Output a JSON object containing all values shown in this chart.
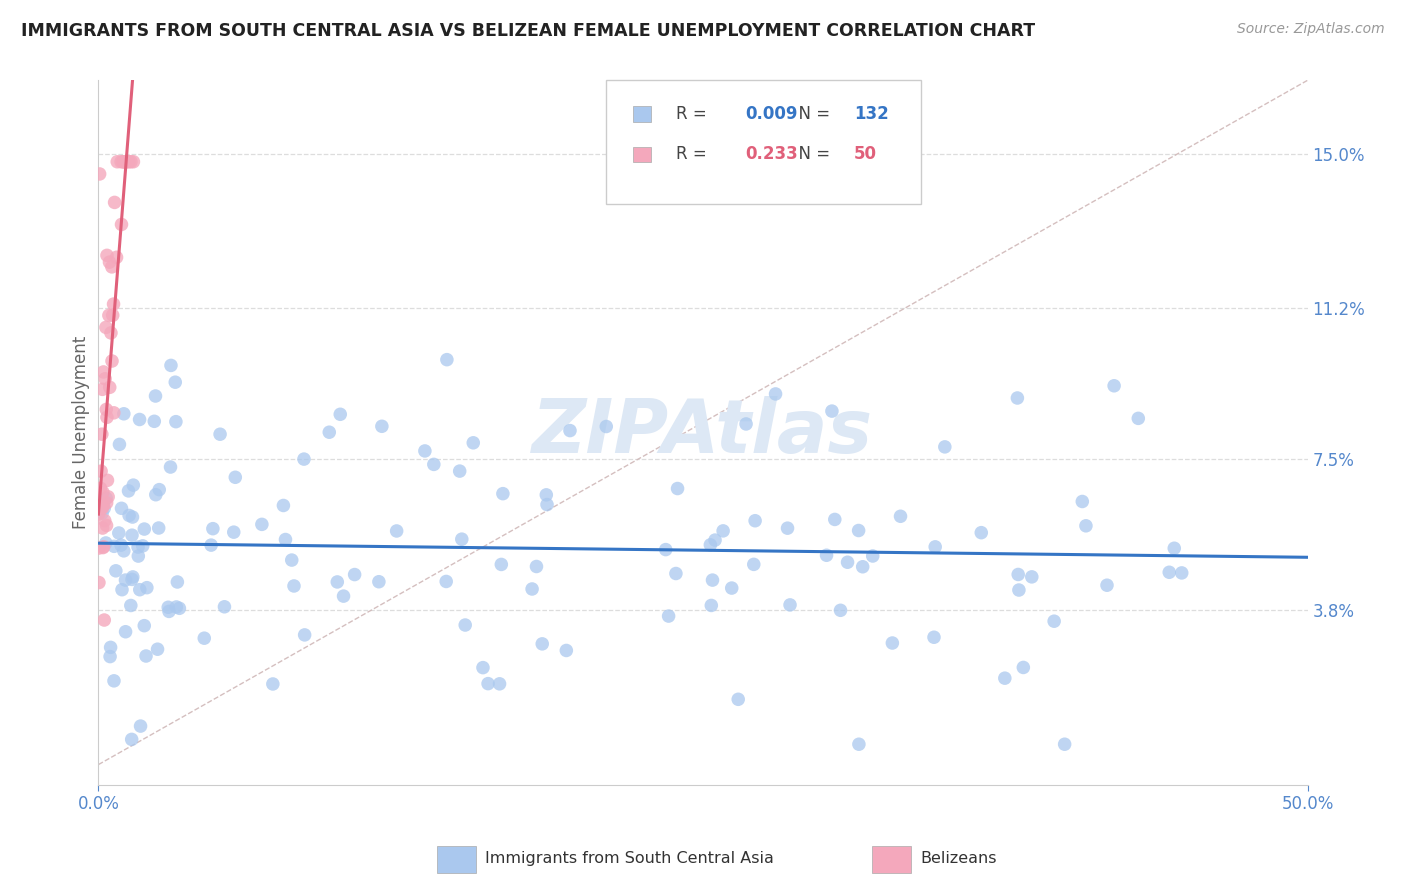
{
  "title": "IMMIGRANTS FROM SOUTH CENTRAL ASIA VS BELIZEAN FEMALE UNEMPLOYMENT CORRELATION CHART",
  "source": "Source: ZipAtlas.com",
  "ylabel": "Female Unemployment",
  "right_yticks": [
    "15.0%",
    "11.2%",
    "7.5%",
    "3.8%"
  ],
  "right_ytick_vals": [
    0.15,
    0.112,
    0.075,
    0.038
  ],
  "xmin": 0.0,
  "xmax": 0.5,
  "ymin": -0.005,
  "ymax": 0.168,
  "legend_blue_R": "0.009",
  "legend_blue_N": "132",
  "legend_pink_R": "0.233",
  "legend_pink_N": "50",
  "blue_color": "#aac8ee",
  "pink_color": "#f4a8bc",
  "blue_line_color": "#3575c5",
  "pink_line_color": "#e0607a",
  "diagonal_line_color": "#d0b8b8",
  "watermark_color": "#dde8f5",
  "title_color": "#222222",
  "right_axis_color": "#5588cc",
  "grid_color": "#dddddd",
  "source_color": "#999999"
}
